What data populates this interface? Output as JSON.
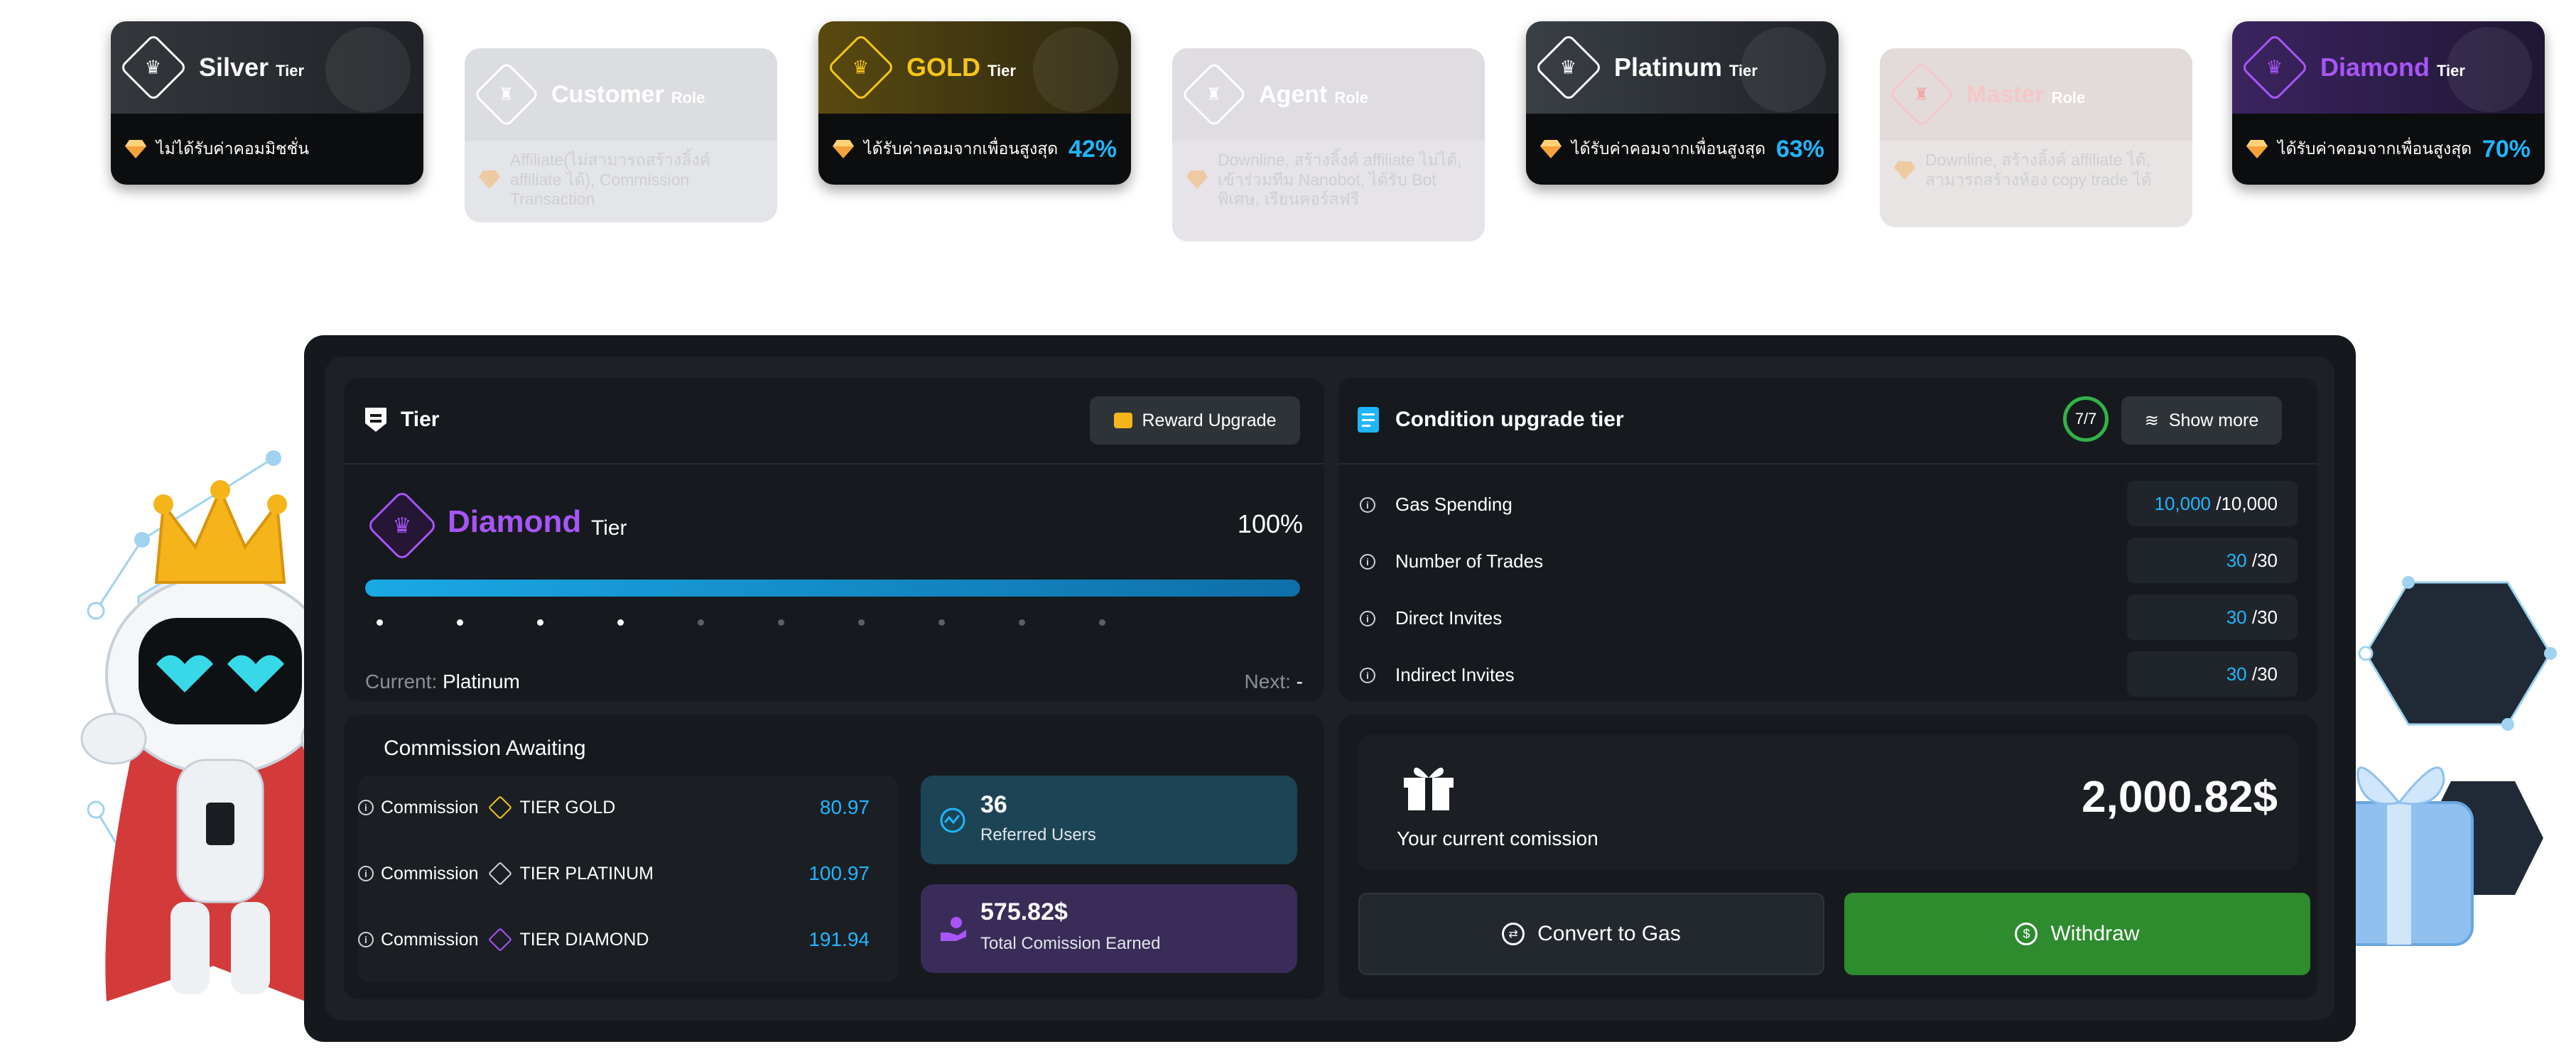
{
  "tier_cards": [
    {
      "name": "Silver",
      "suffix": "Tier",
      "desc": "ไม่ได้รับค่าคอมมิชชั่น",
      "pct": "",
      "active": true,
      "accent": "#e8e8e8"
    },
    {
      "name": "Customer",
      "suffix": "Role",
      "desc": "Affiliate(ไม่สามารถสร้างลิ้งค์ affiliate ได้), Commission Transaction",
      "active": false
    },
    {
      "name": "GOLD",
      "suffix": "Tier",
      "desc": "ได้รับค่าคอมจากเพื่อนสูงสุด",
      "pct": "42%",
      "active": true,
      "accent": "#f5c518"
    },
    {
      "name": "Agent",
      "suffix": "Role",
      "desc": "Downline, สร้างลิ้งค์ affiliate ไม่ได้, เข้าร่วมทีม Nanobot, ได้รับ Bot พิเศษ, เรียนคอร์สฟรี",
      "active": false
    },
    {
      "name": "Platinum",
      "suffix": "Tier",
      "desc": "ได้รับค่าคอมจากเพื่อนสูงสุด",
      "pct": "63%",
      "active": true,
      "accent": "#e8e8e8"
    },
    {
      "name": "Master",
      "suffix": "Role",
      "desc": "Downline, สร้างลิ้งค์ affiliate ได้, สามารถสร้างห้อง copy trade ได้",
      "active": false
    },
    {
      "name": "Diamond",
      "suffix": "Tier",
      "desc": "ได้รับค่าคอมจากเพื่อนสูงสุด",
      "pct": "70%",
      "active": true,
      "accent": "#a855f7"
    }
  ],
  "tier_panel": {
    "title": "Tier",
    "reward_button": "Reward Upgrade",
    "current_tier": "Diamond",
    "current_tier_suffix": "Tier",
    "progress_label": "100%",
    "progress": 1.0,
    "current_label": "Current:",
    "current_value": "Platinum",
    "next_label": "Next:",
    "next_value": "-"
  },
  "condition_panel": {
    "title": "Condition upgrade tier",
    "count_badge": "7/7",
    "show_more": "Show more",
    "rows": [
      {
        "label": "Gas Spending",
        "value": "10,000",
        "total": "/10,000"
      },
      {
        "label": "Number of Trades",
        "value": "30",
        "total": "/30"
      },
      {
        "label": "Direct Invites",
        "value": "30",
        "total": "/30"
      },
      {
        "label": "Indirect Invites",
        "value": "30",
        "total": "/30"
      }
    ]
  },
  "commission_panel": {
    "title": "Commission Awaiting",
    "rows": [
      {
        "label": "Commission",
        "tier": "TIER GOLD",
        "value": "80.97"
      },
      {
        "label": "Commission",
        "tier": "TIER PLATINUM",
        "value": "100.97"
      },
      {
        "label": "Commission",
        "tier": "TIER DIAMOND",
        "value": "191.94"
      }
    ],
    "referred": {
      "value": "36",
      "label": "Referred Users"
    },
    "earned": {
      "value": "575.82$",
      "label": "Total Comission Earned"
    }
  },
  "wallet_panel": {
    "label": "Your current comission",
    "amount": "2,000.82$",
    "convert_button": "Convert to Gas",
    "withdraw_button": "Withdraw"
  },
  "colors": {
    "accent_blue": "#1fb6ff",
    "diamond": "#a855f7",
    "gold": "#f5c518",
    "withdraw": "#2e8b2e"
  }
}
